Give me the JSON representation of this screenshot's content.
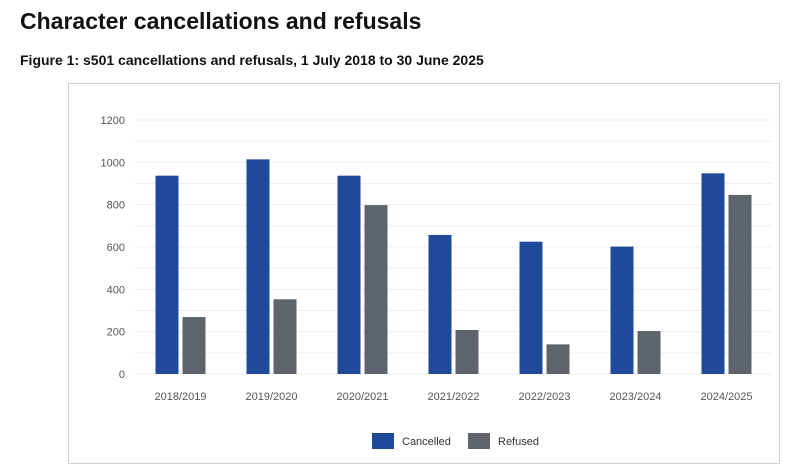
{
  "title": "Character cancellations and refusals",
  "subtitle": "Figure 1: s501 cancellations and refusals, 1 July 2018 to 30 June 2025",
  "chart_data": {
    "type": "bar",
    "categories": [
      "2018/2019",
      "2019/2020",
      "2020/2021",
      "2021/2022",
      "2022/2023",
      "2023/2024",
      "2024/2025"
    ],
    "series": [
      {
        "name": "Cancelled",
        "color": "#1f4a9a",
        "values": [
          937,
          1014,
          937,
          657,
          625,
          602,
          948
        ]
      },
      {
        "name": "Refused",
        "color": "#5d646b",
        "values": [
          269,
          353,
          798,
          208,
          140,
          203,
          846
        ]
      }
    ],
    "yticks": [
      0,
      200,
      400,
      600,
      800,
      1000,
      1200
    ],
    "ylim": [
      0,
      1200
    ],
    "grid": true,
    "legend": "bottom"
  }
}
